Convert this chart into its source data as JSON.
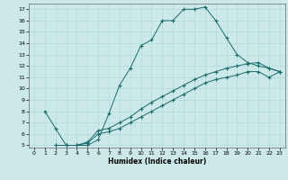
{
  "title": "",
  "xlabel": "Humidex (Indice chaleur)",
  "bg_color": "#cce8e8",
  "line_color": "#1a6b6b",
  "xlim": [
    -0.5,
    23.5
  ],
  "ylim": [
    4.8,
    17.5
  ],
  "xticks": [
    0,
    1,
    2,
    3,
    4,
    5,
    6,
    7,
    8,
    9,
    10,
    11,
    12,
    13,
    14,
    15,
    16,
    17,
    18,
    19,
    20,
    21,
    22,
    23
  ],
  "yticks": [
    5,
    6,
    7,
    8,
    9,
    10,
    11,
    12,
    13,
    14,
    15,
    16,
    17
  ],
  "curve1_x": [
    1,
    2,
    3,
    4,
    5,
    6,
    7,
    8,
    9,
    10,
    11,
    12,
    13,
    14,
    15,
    16,
    17,
    18,
    19,
    20,
    21,
    22,
    23
  ],
  "curve1_y": [
    8.0,
    6.5,
    5.0,
    5.0,
    5.0,
    5.5,
    7.8,
    10.3,
    11.8,
    13.8,
    14.3,
    16.0,
    16.0,
    17.0,
    17.0,
    17.2,
    16.0,
    14.5,
    13.0,
    12.3,
    12.0,
    11.8,
    11.5
  ],
  "curve2_x": [
    2,
    3,
    4,
    5,
    6,
    7,
    8,
    9,
    10,
    11,
    12,
    13,
    14,
    15,
    16,
    17,
    18,
    19,
    20,
    21,
    22,
    23
  ],
  "curve2_y": [
    5.0,
    5.0,
    5.0,
    5.3,
    6.3,
    6.5,
    7.0,
    7.5,
    8.2,
    8.8,
    9.3,
    9.8,
    10.3,
    10.8,
    11.2,
    11.5,
    11.8,
    12.0,
    12.2,
    12.3,
    11.8,
    11.5
  ],
  "curve3_x": [
    2,
    3,
    4,
    5,
    6,
    7,
    8,
    9,
    10,
    11,
    12,
    13,
    14,
    15,
    16,
    17,
    18,
    19,
    20,
    21,
    22,
    23
  ],
  "curve3_y": [
    5.0,
    5.0,
    5.0,
    5.2,
    6.0,
    6.2,
    6.5,
    7.0,
    7.5,
    8.0,
    8.5,
    9.0,
    9.5,
    10.0,
    10.5,
    10.8,
    11.0,
    11.2,
    11.5,
    11.5,
    11.0,
    11.5
  ]
}
